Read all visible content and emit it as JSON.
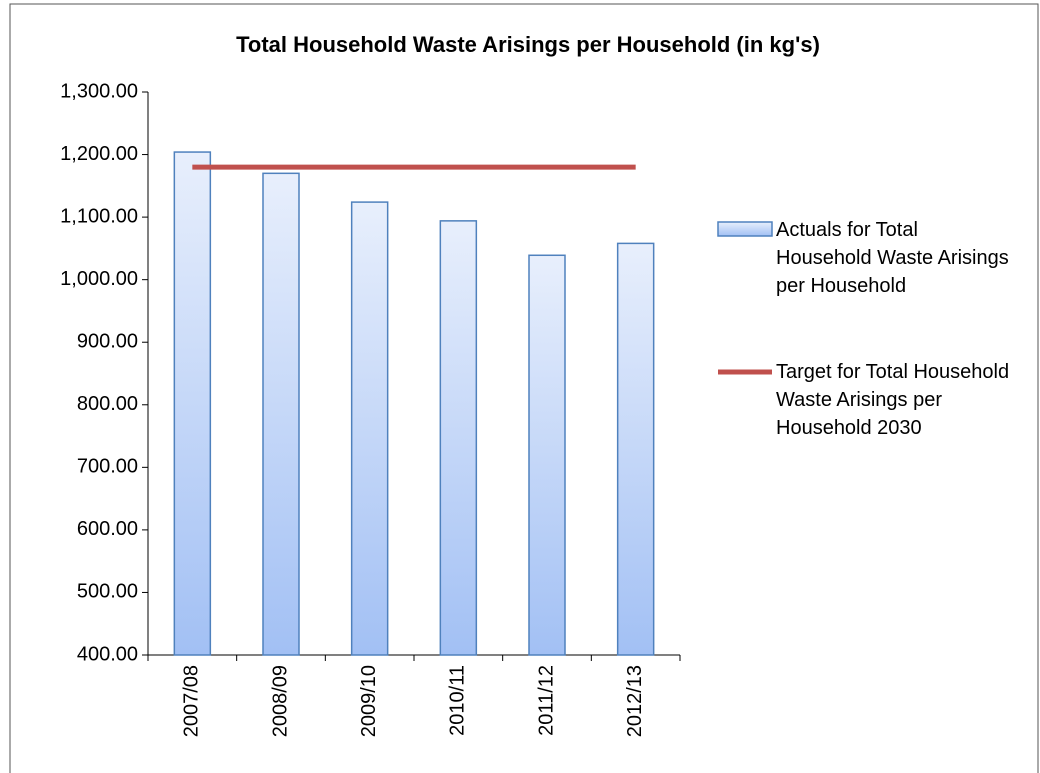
{
  "chart_data": {
    "type": "bar",
    "title": "Total Household Waste Arisings per Household (in kg's)",
    "categories": [
      "2007/08",
      "2008/09",
      "2009/10",
      "2010/11",
      "2011/12",
      "2012/13"
    ],
    "series": [
      {
        "name": "Actuals for Total Household Waste Arisings per Household",
        "type": "bar",
        "color": "#4f81bd",
        "values": [
          1204,
          1170,
          1124,
          1094,
          1039,
          1058
        ]
      },
      {
        "name": "Target for Total Household Waste Arisings per Household 2030",
        "type": "line",
        "color": "#c0504d",
        "values": [
          1180,
          1180,
          1180,
          1180,
          1180,
          1180
        ]
      }
    ],
    "ylim": [
      400,
      1300
    ],
    "yticks": [
      {
        "value": 400,
        "label": "400.00"
      },
      {
        "value": 500,
        "label": "500.00"
      },
      {
        "value": 600,
        "label": "600.00"
      },
      {
        "value": 700,
        "label": "700.00"
      },
      {
        "value": 800,
        "label": "800.00"
      },
      {
        "value": 900,
        "label": "900.00"
      },
      {
        "value": 1000,
        "label": "1,000.00"
      },
      {
        "value": 1100,
        "label": "1,100.00"
      },
      {
        "value": 1200,
        "label": "1,200.00"
      },
      {
        "value": 1300,
        "label": "1,300.00"
      }
    ],
    "legend": "right"
  }
}
